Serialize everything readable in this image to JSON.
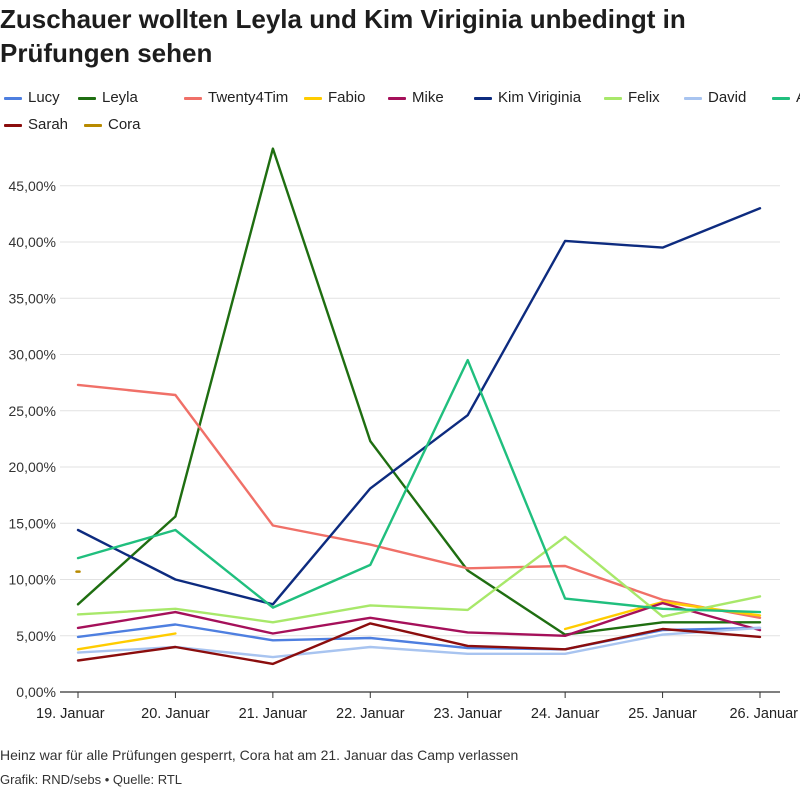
{
  "title": "Zuschauer wollten Leyla und Kim Viriginia unbedingt in Prüfungen sehen",
  "note": "Heinz war für alle Prüfungen gesperrt, Cora hat am 21. Januar das Camp verlassen",
  "source": "Grafik: RND/sebs • Quelle: RTL",
  "chart_data": {
    "type": "line",
    "title": "Zuschauer wollten Leyla und Kim Viriginia unbedingt in Prüfungen sehen",
    "categories": [
      "19. Januar",
      "20. Januar",
      "21. Januar",
      "22. Januar",
      "23. Januar",
      "24. Januar",
      "25. Januar",
      "26. Januar"
    ],
    "ylim": [
      0,
      48
    ],
    "yticks": [
      0,
      5,
      10,
      15,
      20,
      25,
      30,
      35,
      40,
      45
    ],
    "ytick_labels": [
      "0,00%",
      "5,00%",
      "10,00%",
      "15,00%",
      "20,00%",
      "25,00%",
      "30,00%",
      "35,00%",
      "40,00%",
      "45,00%"
    ],
    "grid": true,
    "legend": "top",
    "series": [
      {
        "name": "Lucy",
        "color": "#4e7fe0",
        "values": [
          4.9,
          6.0,
          4.6,
          4.8,
          3.9,
          3.8,
          5.5,
          5.7
        ]
      },
      {
        "name": "Leyla",
        "color": "#1f6e11",
        "values": [
          7.8,
          15.6,
          48.3,
          22.3,
          10.8,
          5.1,
          6.2,
          6.2
        ]
      },
      {
        "name": "Twenty4Tim",
        "color": "#f07068",
        "values": [
          27.3,
          26.4,
          14.8,
          13.1,
          11.0,
          11.2,
          8.2,
          6.6
        ]
      },
      {
        "name": "Fabio",
        "color": "#ffcc00",
        "values": [
          3.8,
          5.2,
          null,
          null,
          null,
          5.6,
          8.0,
          6.8
        ]
      },
      {
        "name": "Mike",
        "color": "#a5105a",
        "values": [
          5.7,
          7.1,
          5.2,
          6.6,
          5.3,
          5.0,
          7.9,
          5.5
        ]
      },
      {
        "name": "Kim Viriginia",
        "color": "#0d2b7f",
        "values": [
          14.4,
          10.0,
          7.8,
          18.1,
          24.6,
          40.1,
          39.5,
          43.0
        ]
      },
      {
        "name": "Felix",
        "color": "#a8e86a",
        "values": [
          6.9,
          7.4,
          6.2,
          7.7,
          7.3,
          13.8,
          6.7,
          8.5
        ]
      },
      {
        "name": "David",
        "color": "#a8c4f0",
        "values": [
          3.5,
          4.0,
          3.1,
          4.0,
          3.4,
          3.4,
          5.1,
          5.7
        ]
      },
      {
        "name": "Anya",
        "color": "#20bf7e",
        "values": [
          11.9,
          14.4,
          7.5,
          11.3,
          29.5,
          8.3,
          7.4,
          7.1
        ]
      },
      {
        "name": "Sarah",
        "color": "#8b0d0d",
        "values": [
          2.8,
          4.0,
          2.5,
          6.1,
          4.1,
          3.8,
          5.6,
          4.9
        ]
      },
      {
        "name": "Cora",
        "color": "#b88a00",
        "values": [
          10.7,
          null,
          null,
          null,
          null,
          null,
          null,
          null
        ]
      }
    ]
  }
}
